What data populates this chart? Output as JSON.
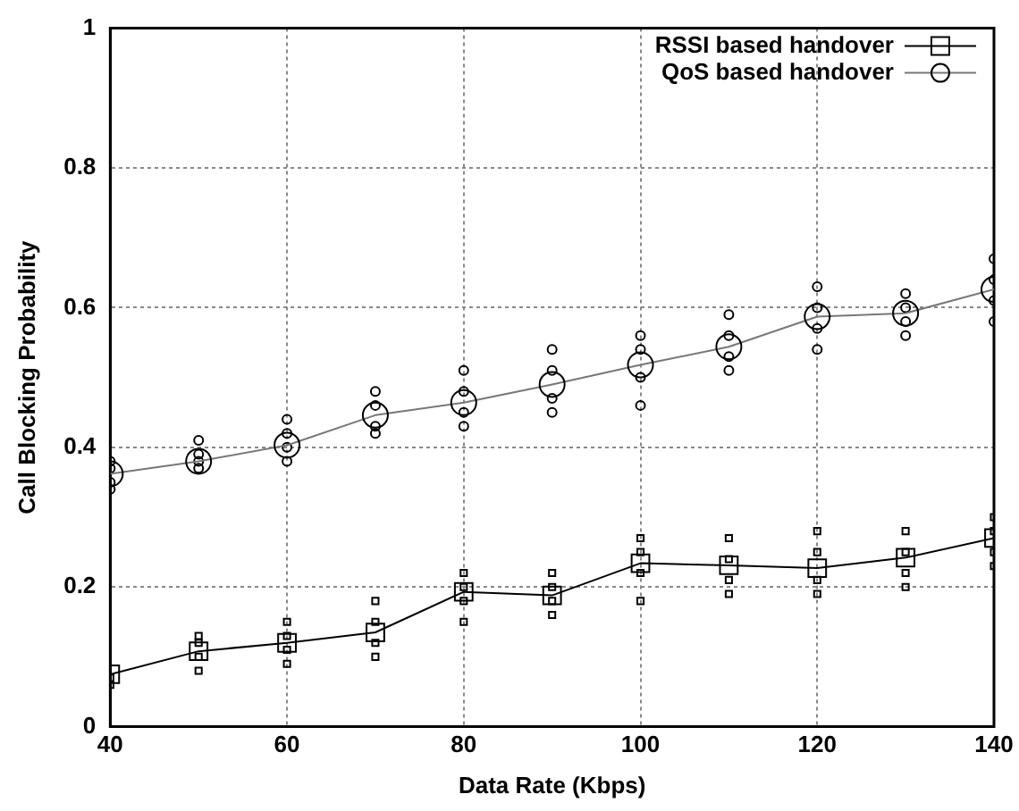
{
  "chart_data": {
    "type": "line",
    "xlabel": "Data Rate (Kbps)",
    "ylabel": "Call Blocking Probability",
    "x": [
      40,
      50,
      60,
      70,
      80,
      90,
      100,
      110,
      120,
      130,
      140
    ],
    "xlim": [
      40,
      140
    ],
    "xticks": [
      40,
      60,
      80,
      100,
      120,
      140
    ],
    "ylim": [
      0,
      1
    ],
    "yticks": [
      0,
      0.2,
      0.4,
      0.6,
      0.8,
      1
    ],
    "grid": true,
    "legend": "top right",
    "line_style": "solid",
    "series": [
      {
        "name": "RSSI based handover",
        "color": "#000000",
        "marker": "square",
        "values": [
          0.075,
          0.108,
          0.12,
          0.135,
          0.193,
          0.188,
          0.234,
          0.231,
          0.227,
          0.242,
          0.27
        ]
      },
      {
        "name": "QoS based handover",
        "color": "#777777",
        "marker": "circle",
        "values": [
          0.362,
          0.38,
          0.403,
          0.446,
          0.464,
          0.49,
          0.518,
          0.544,
          0.587,
          0.592,
          0.626
        ]
      },
      {
        "type": "scatter",
        "color": "#000000",
        "marker": "square",
        "x": [
          40,
          40,
          50,
          50,
          50,
          50,
          60,
          60,
          60,
          60,
          70,
          70,
          70,
          70,
          80,
          80,
          80,
          80,
          90,
          90,
          90,
          90,
          100,
          100,
          100,
          100,
          110,
          110,
          110,
          110,
          120,
          120,
          120,
          120,
          130,
          130,
          130,
          130,
          140,
          140,
          140,
          140
        ],
        "values": [
          0.06,
          0.07,
          0.08,
          0.1,
          0.12,
          0.13,
          0.09,
          0.11,
          0.13,
          0.15,
          0.1,
          0.12,
          0.15,
          0.18,
          0.15,
          0.18,
          0.2,
          0.22,
          0.16,
          0.18,
          0.2,
          0.22,
          0.18,
          0.22,
          0.25,
          0.27,
          0.19,
          0.21,
          0.24,
          0.27,
          0.19,
          0.21,
          0.25,
          0.28,
          0.2,
          0.22,
          0.25,
          0.28,
          0.23,
          0.25,
          0.28,
          0.3
        ]
      },
      {
        "type": "scatter",
        "color": "#000000",
        "marker": "circle",
        "x": [
          40,
          40,
          40,
          40,
          50,
          50,
          50,
          50,
          60,
          60,
          60,
          60,
          70,
          70,
          70,
          70,
          80,
          80,
          80,
          80,
          90,
          90,
          90,
          90,
          100,
          100,
          100,
          100,
          110,
          110,
          110,
          110,
          120,
          120,
          120,
          120,
          130,
          130,
          130,
          130,
          140,
          140,
          140,
          140
        ],
        "values": [
          0.34,
          0.35,
          0.37,
          0.38,
          0.37,
          0.38,
          0.39,
          0.41,
          0.38,
          0.4,
          0.42,
          0.44,
          0.42,
          0.43,
          0.46,
          0.48,
          0.43,
          0.45,
          0.48,
          0.51,
          0.45,
          0.47,
          0.51,
          0.54,
          0.46,
          0.5,
          0.54,
          0.56,
          0.51,
          0.53,
          0.56,
          0.59,
          0.54,
          0.57,
          0.6,
          0.63,
          0.56,
          0.58,
          0.6,
          0.62,
          0.58,
          0.61,
          0.64,
          0.67
        ]
      }
    ]
  }
}
